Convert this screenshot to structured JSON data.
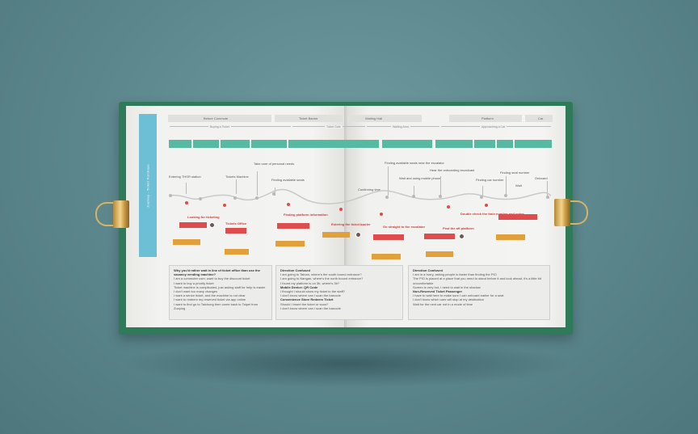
{
  "side_title": "Journey - Ticket Purchase",
  "stages": [
    "Before Commute",
    "Ticket Barrier",
    "Waiting Hall",
    "Platform",
    "Car"
  ],
  "sub_stages": [
    "Buying a Ticket",
    "Ticket Gate",
    "Waiting Area",
    "Approaching a Car"
  ],
  "steps": [
    "Entering THSR station",
    "Tickets Machine",
    "Take care of personal needs",
    "Finding available seats",
    "Confirming time",
    "Finding available seats near the escalator",
    "Wait and using mobile phone",
    "Hear the onboarding broadcast",
    "Finding car number",
    "Finding seat number",
    "Wait",
    "Onboard"
  ],
  "pains": [
    "Looking for ticketing",
    "Tickets Office",
    "Finding platform information",
    "Entering the ticket barrier",
    "Go straight to the escalator",
    "Find the aft platform",
    "Double check the train number and cntgs"
  ],
  "box1": {
    "title": "Why you'd rather wait in line of ticket office than use the vacancy vending machine?",
    "lines": [
      "I am a commuter user, want to buy the discount ticket",
      "I want to buy a priority ticket",
      "Ticket machine is complicated, just asking staff for help is easier",
      "I don't want too many changes",
      "I want a senior ticket, and the machine is not clear",
      "I want to redeem my reserved ticket via app online",
      "I want to find go to Taichung then come back to Taipei from Zuoying"
    ]
  },
  "box2": {
    "h1": "Direction Confused",
    "l1": [
      "I am going to Tainan, where's the south bound entrance?",
      "I am going to Nangan, where's the north bound entrance?",
      "I found my platform is on 3b, where's 3b?"
    ],
    "h2": "Mobile Device: QR Code",
    "l2": [
      "I thought I should show my ticket to the staff?",
      "I don't know where can I scan the barcode"
    ],
    "h3": "Convenience Store Redeem Ticket",
    "l3": [
      "Should I insert the ticket or scan?",
      "I don't know where can I scan the barcode"
    ]
  },
  "box3": {
    "h1": "Direction Confused",
    "l1": [
      "I am in a hurry, asking people is faster than finding the PIO",
      "The PIO is placed at a place that you need to stand before it and look ahead, it's a little bit uncomfortable",
      "Screen is very hot, I need to wait in the shadow"
    ],
    "h2": "Non-Reserved Ticket Passenger",
    "l2": [
      "I have to wait here to make sure I can onboard earlier for a seat",
      "I don't know which cars will stop at my destination",
      "Wait for the next car not in a mode of time"
    ]
  },
  "colors": {
    "background": "#5b868c",
    "cover": "#2f7a58",
    "teal": "#58b9a3",
    "red": "#df4c4e",
    "orange": "#e2a03a",
    "tab": "#6cbfd5"
  }
}
